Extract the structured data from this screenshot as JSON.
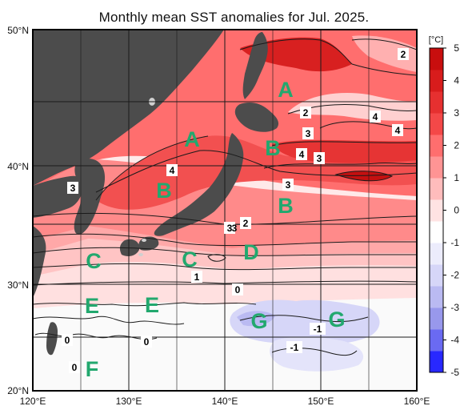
{
  "title": "Monthly mean SST anomalies for Jul. 2025.",
  "lat_labels": [
    "50°N",
    "40°N",
    "30°N",
    "20°N"
  ],
  "lon_labels": [
    "120°E",
    "130°E",
    "140°E",
    "150°E",
    "160°E"
  ],
  "colorbar": {
    "unit": "[°C]",
    "ticks": [
      "5",
      "4",
      "3",
      "2",
      "1",
      "0",
      "-1",
      "-2",
      "-3",
      "-4",
      "-5"
    ],
    "colors": [
      "#2828ff",
      "#6a6af2",
      "#9898ec",
      "#babaf2",
      "#d6d6f8",
      "#ececfc",
      "#ffffff",
      "#ffe3e3",
      "#ffbcbc",
      "#ff9494",
      "#ff6e6e",
      "#f44848",
      "#e63030",
      "#d81c1c",
      "#c80e0e"
    ]
  },
  "regions": [
    "A",
    "A",
    "B",
    "B",
    "B",
    "C",
    "C",
    "D",
    "E",
    "E",
    "F",
    "G",
    "G"
  ],
  "contour_labels": [
    "2",
    "2",
    "3",
    "4",
    "3",
    "4",
    "3",
    "4",
    "4",
    "3",
    "3",
    "2",
    "3",
    "1",
    "0",
    "0",
    "0",
    "0",
    "-1",
    "-1"
  ],
  "colors": {
    "land": "#4c4c4c",
    "region_text": "#22a86e"
  }
}
